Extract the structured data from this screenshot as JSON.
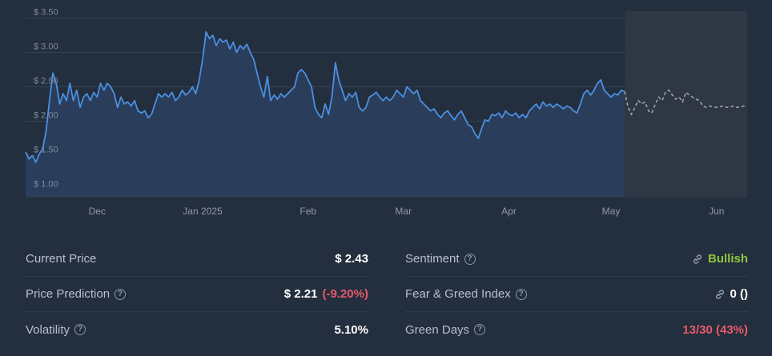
{
  "chart_data": {
    "type": "line",
    "ylim": [
      0.9,
      3.6
    ],
    "y_ticks": [
      {
        "value": 1.0,
        "label": "$ 1.00"
      },
      {
        "value": 1.5,
        "label": "$ 1.50"
      },
      {
        "value": 2.0,
        "label": "$ 2.00"
      },
      {
        "value": 2.5,
        "label": "$ 2.50"
      },
      {
        "value": 3.0,
        "label": "$ 3.00"
      },
      {
        "value": 3.5,
        "label": "$ 3.50"
      }
    ],
    "xlim": [
      "2024-11-10",
      "2025-06-10"
    ],
    "x_ticks": [
      {
        "value": "2024-12-01",
        "label": "Dec"
      },
      {
        "value": "2025-01-01",
        "label": "Jan 2025"
      },
      {
        "value": "2025-02-01",
        "label": "Feb"
      },
      {
        "value": "2025-03-01",
        "label": "Mar"
      },
      {
        "value": "2025-04-01",
        "label": "Apr"
      },
      {
        "value": "2025-05-01",
        "label": "May"
      },
      {
        "value": "2025-06-01",
        "label": "Jun"
      }
    ],
    "series": [
      {
        "style": "solid-area",
        "color": "#4a90e2",
        "points": [
          [
            "2024-11-10",
            1.55
          ],
          [
            "2024-11-11",
            1.45
          ],
          [
            "2024-11-12",
            1.5
          ],
          [
            "2024-11-13",
            1.4
          ],
          [
            "2024-11-14",
            1.52
          ],
          [
            "2024-11-15",
            1.6
          ],
          [
            "2024-11-16",
            1.85
          ],
          [
            "2024-11-17",
            2.3
          ],
          [
            "2024-11-18",
            2.7
          ],
          [
            "2024-11-19",
            2.55
          ],
          [
            "2024-11-20",
            2.25
          ],
          [
            "2024-11-21",
            2.4
          ],
          [
            "2024-11-22",
            2.3
          ],
          [
            "2024-11-23",
            2.55
          ],
          [
            "2024-11-24",
            2.3
          ],
          [
            "2024-11-25",
            2.45
          ],
          [
            "2024-11-26",
            2.2
          ],
          [
            "2024-11-27",
            2.35
          ],
          [
            "2024-11-28",
            2.4
          ],
          [
            "2024-11-29",
            2.3
          ],
          [
            "2024-11-30",
            2.42
          ],
          [
            "2024-12-01",
            2.35
          ],
          [
            "2024-12-02",
            2.55
          ],
          [
            "2024-12-03",
            2.45
          ],
          [
            "2024-12-04",
            2.55
          ],
          [
            "2024-12-05",
            2.5
          ],
          [
            "2024-12-06",
            2.4
          ],
          [
            "2024-12-07",
            2.2
          ],
          [
            "2024-12-08",
            2.35
          ],
          [
            "2024-12-09",
            2.25
          ],
          [
            "2024-12-10",
            2.28
          ],
          [
            "2024-12-11",
            2.22
          ],
          [
            "2024-12-12",
            2.3
          ],
          [
            "2024-12-13",
            2.15
          ],
          [
            "2024-12-14",
            2.12
          ],
          [
            "2024-12-15",
            2.15
          ],
          [
            "2024-12-16",
            2.05
          ],
          [
            "2024-12-17",
            2.1
          ],
          [
            "2024-12-18",
            2.25
          ],
          [
            "2024-12-19",
            2.4
          ],
          [
            "2024-12-20",
            2.35
          ],
          [
            "2024-12-21",
            2.4
          ],
          [
            "2024-12-22",
            2.35
          ],
          [
            "2024-12-23",
            2.42
          ],
          [
            "2024-12-24",
            2.3
          ],
          [
            "2024-12-25",
            2.35
          ],
          [
            "2024-12-26",
            2.45
          ],
          [
            "2024-12-27",
            2.38
          ],
          [
            "2024-12-28",
            2.42
          ],
          [
            "2024-12-29",
            2.5
          ],
          [
            "2024-12-30",
            2.4
          ],
          [
            "2024-12-31",
            2.6
          ],
          [
            "2025-01-01",
            2.9
          ],
          [
            "2025-01-02",
            3.3
          ],
          [
            "2025-01-03",
            3.2
          ],
          [
            "2025-01-04",
            3.25
          ],
          [
            "2025-01-05",
            3.1
          ],
          [
            "2025-01-06",
            3.2
          ],
          [
            "2025-01-07",
            3.15
          ],
          [
            "2025-01-08",
            3.18
          ],
          [
            "2025-01-09",
            3.05
          ],
          [
            "2025-01-10",
            3.15
          ],
          [
            "2025-01-11",
            3.0
          ],
          [
            "2025-01-12",
            3.1
          ],
          [
            "2025-01-13",
            3.05
          ],
          [
            "2025-01-14",
            3.12
          ],
          [
            "2025-01-15",
            3.0
          ],
          [
            "2025-01-16",
            2.9
          ],
          [
            "2025-01-17",
            2.7
          ],
          [
            "2025-01-18",
            2.5
          ],
          [
            "2025-01-19",
            2.35
          ],
          [
            "2025-01-20",
            2.65
          ],
          [
            "2025-01-21",
            2.3
          ],
          [
            "2025-01-22",
            2.38
          ],
          [
            "2025-01-23",
            2.32
          ],
          [
            "2025-01-24",
            2.4
          ],
          [
            "2025-01-25",
            2.35
          ],
          [
            "2025-01-26",
            2.4
          ],
          [
            "2025-01-27",
            2.45
          ],
          [
            "2025-01-28",
            2.5
          ],
          [
            "2025-01-29",
            2.7
          ],
          [
            "2025-01-30",
            2.75
          ],
          [
            "2025-01-31",
            2.7
          ],
          [
            "2025-02-01",
            2.6
          ],
          [
            "2025-02-02",
            2.5
          ],
          [
            "2025-02-03",
            2.2
          ],
          [
            "2025-02-04",
            2.1
          ],
          [
            "2025-02-05",
            2.05
          ],
          [
            "2025-02-06",
            2.25
          ],
          [
            "2025-02-07",
            2.1
          ],
          [
            "2025-02-08",
            2.35
          ],
          [
            "2025-02-09",
            2.85
          ],
          [
            "2025-02-10",
            2.6
          ],
          [
            "2025-02-11",
            2.45
          ],
          [
            "2025-02-12",
            2.3
          ],
          [
            "2025-02-13",
            2.4
          ],
          [
            "2025-02-14",
            2.35
          ],
          [
            "2025-02-15",
            2.42
          ],
          [
            "2025-02-16",
            2.2
          ],
          [
            "2025-02-17",
            2.15
          ],
          [
            "2025-02-18",
            2.2
          ],
          [
            "2025-02-19",
            2.35
          ],
          [
            "2025-02-20",
            2.38
          ],
          [
            "2025-02-21",
            2.42
          ],
          [
            "2025-02-22",
            2.35
          ],
          [
            "2025-02-23",
            2.3
          ],
          [
            "2025-02-24",
            2.35
          ],
          [
            "2025-02-25",
            2.3
          ],
          [
            "2025-02-26",
            2.35
          ],
          [
            "2025-02-27",
            2.45
          ],
          [
            "2025-02-28",
            2.4
          ],
          [
            "2025-03-01",
            2.35
          ],
          [
            "2025-03-02",
            2.5
          ],
          [
            "2025-03-03",
            2.45
          ],
          [
            "2025-03-04",
            2.4
          ],
          [
            "2025-03-05",
            2.45
          ],
          [
            "2025-03-06",
            2.3
          ],
          [
            "2025-03-07",
            2.25
          ],
          [
            "2025-03-08",
            2.2
          ],
          [
            "2025-03-09",
            2.15
          ],
          [
            "2025-03-10",
            2.18
          ],
          [
            "2025-03-11",
            2.1
          ],
          [
            "2025-03-12",
            2.05
          ],
          [
            "2025-03-13",
            2.12
          ],
          [
            "2025-03-14",
            2.15
          ],
          [
            "2025-03-15",
            2.08
          ],
          [
            "2025-03-16",
            2.02
          ],
          [
            "2025-03-17",
            2.1
          ],
          [
            "2025-03-18",
            2.15
          ],
          [
            "2025-03-19",
            2.05
          ],
          [
            "2025-03-20",
            1.95
          ],
          [
            "2025-03-21",
            1.92
          ],
          [
            "2025-03-22",
            1.82
          ],
          [
            "2025-03-23",
            1.75
          ],
          [
            "2025-03-24",
            1.9
          ],
          [
            "2025-03-25",
            2.02
          ],
          [
            "2025-03-26",
            2.0
          ],
          [
            "2025-03-27",
            2.1
          ],
          [
            "2025-03-28",
            2.08
          ],
          [
            "2025-03-29",
            2.12
          ],
          [
            "2025-03-30",
            2.05
          ],
          [
            "2025-03-31",
            2.15
          ],
          [
            "2025-04-01",
            2.1
          ],
          [
            "2025-04-02",
            2.08
          ],
          [
            "2025-04-03",
            2.12
          ],
          [
            "2025-04-04",
            2.05
          ],
          [
            "2025-04-05",
            2.1
          ],
          [
            "2025-04-06",
            2.05
          ],
          [
            "2025-04-07",
            2.15
          ],
          [
            "2025-04-08",
            2.2
          ],
          [
            "2025-04-09",
            2.25
          ],
          [
            "2025-04-10",
            2.18
          ],
          [
            "2025-04-11",
            2.28
          ],
          [
            "2025-04-12",
            2.22
          ],
          [
            "2025-04-13",
            2.25
          ],
          [
            "2025-04-14",
            2.2
          ],
          [
            "2025-04-15",
            2.25
          ],
          [
            "2025-04-16",
            2.22
          ],
          [
            "2025-04-17",
            2.18
          ],
          [
            "2025-04-18",
            2.22
          ],
          [
            "2025-04-19",
            2.2
          ],
          [
            "2025-04-20",
            2.15
          ],
          [
            "2025-04-21",
            2.12
          ],
          [
            "2025-04-22",
            2.25
          ],
          [
            "2025-04-23",
            2.4
          ],
          [
            "2025-04-24",
            2.45
          ],
          [
            "2025-04-25",
            2.38
          ],
          [
            "2025-04-26",
            2.45
          ],
          [
            "2025-04-27",
            2.55
          ],
          [
            "2025-04-28",
            2.6
          ],
          [
            "2025-04-29",
            2.45
          ],
          [
            "2025-04-30",
            2.4
          ],
          [
            "2025-05-01",
            2.35
          ],
          [
            "2025-05-02",
            2.4
          ],
          [
            "2025-05-03",
            2.38
          ],
          [
            "2025-05-04",
            2.45
          ],
          [
            "2025-05-05",
            2.43
          ]
        ]
      },
      {
        "style": "dashed",
        "color": "#9aa3ad",
        "points": [
          [
            "2025-05-05",
            2.43
          ],
          [
            "2025-05-06",
            2.2
          ],
          [
            "2025-05-07",
            2.1
          ],
          [
            "2025-05-08",
            2.2
          ],
          [
            "2025-05-09",
            2.3
          ],
          [
            "2025-05-10",
            2.25
          ],
          [
            "2025-05-11",
            2.28
          ],
          [
            "2025-05-12",
            2.15
          ],
          [
            "2025-05-13",
            2.12
          ],
          [
            "2025-05-14",
            2.25
          ],
          [
            "2025-05-15",
            2.35
          ],
          [
            "2025-05-16",
            2.3
          ],
          [
            "2025-05-17",
            2.42
          ],
          [
            "2025-05-18",
            2.45
          ],
          [
            "2025-05-19",
            2.38
          ],
          [
            "2025-05-20",
            2.32
          ],
          [
            "2025-05-21",
            2.35
          ],
          [
            "2025-05-22",
            2.28
          ],
          [
            "2025-05-23",
            2.42
          ],
          [
            "2025-05-24",
            2.38
          ],
          [
            "2025-05-25",
            2.35
          ],
          [
            "2025-05-26",
            2.32
          ],
          [
            "2025-05-27",
            2.3
          ],
          [
            "2025-05-28",
            2.22
          ],
          [
            "2025-05-29",
            2.2
          ],
          [
            "2025-05-30",
            2.22
          ],
          [
            "2025-05-31",
            2.21
          ],
          [
            "2025-06-01",
            2.2
          ],
          [
            "2025-06-02",
            2.21
          ],
          [
            "2025-06-03",
            2.22
          ],
          [
            "2025-06-04",
            2.2
          ],
          [
            "2025-06-05",
            2.21
          ],
          [
            "2025-06-06",
            2.22
          ],
          [
            "2025-06-07",
            2.2
          ],
          [
            "2025-06-08",
            2.21
          ],
          [
            "2025-06-09",
            2.22
          ],
          [
            "2025-06-10",
            2.21
          ]
        ]
      }
    ],
    "grid": true,
    "colors": {
      "area": "#2a3d5a",
      "forecast_area": "#2f3644",
      "grid": "#344256"
    }
  },
  "stats": {
    "current_price": {
      "label": "Current Price",
      "value": "$ 2.43"
    },
    "price_prediction": {
      "label": "Price Prediction",
      "value": "$ 2.21",
      "change": "(-9.20%)"
    },
    "volatility": {
      "label": "Volatility",
      "value": "5.10%"
    },
    "sentiment": {
      "label": "Sentiment",
      "value": "Bullish"
    },
    "fear_greed": {
      "label": "Fear & Greed Index",
      "value": "0 ()"
    },
    "green_days": {
      "label": "Green Days",
      "value": "13/30 (43%)"
    }
  },
  "colors": {
    "positive": "#8dc63f",
    "negative": "#e85a6a"
  }
}
